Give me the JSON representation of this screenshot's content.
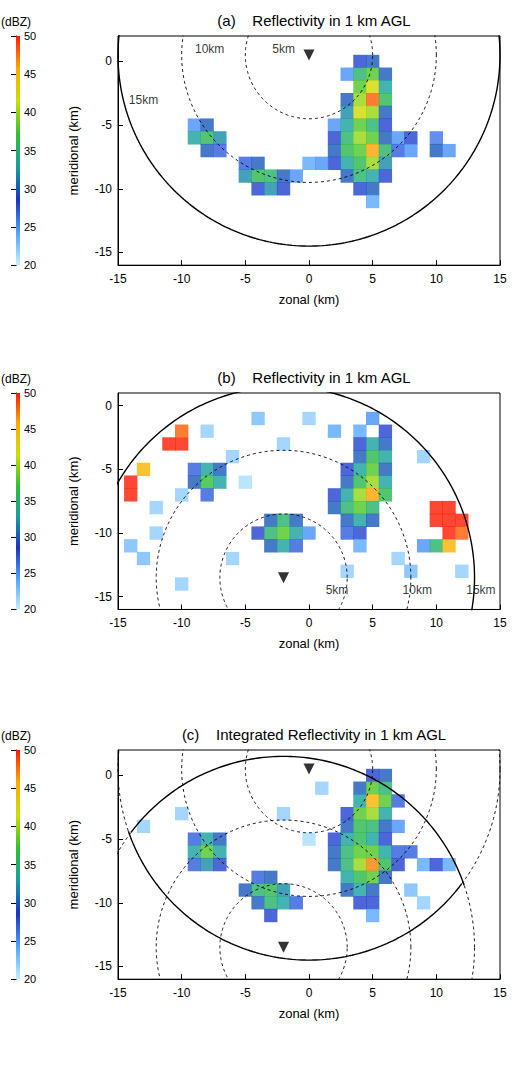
{
  "chart_data": [
    {
      "type": "heatmap",
      "panel": "(a)",
      "title": "Reflectivity in 1 km AGL",
      "x_label": "zonal (km)",
      "y_label": "meridional (km)",
      "xlim": [
        -15,
        15
      ],
      "xticks": [
        -15,
        -10,
        -5,
        0,
        5,
        10,
        15
      ],
      "ylim": [
        -16,
        2
      ],
      "yticks": [
        -15,
        -10,
        -5,
        0
      ],
      "colorbar": {
        "label": "(dBZ)",
        "range": [
          20,
          50
        ],
        "ticks": [
          20,
          25,
          30,
          35,
          40,
          45,
          50
        ]
      },
      "cell_size": 1,
      "cells": [
        [
          4,
          0,
          28
        ],
        [
          5,
          0,
          30
        ],
        [
          3,
          -1,
          25
        ],
        [
          4,
          -1,
          35
        ],
        [
          5,
          -1,
          38
        ],
        [
          6,
          -1,
          30
        ],
        [
          4,
          -2,
          38
        ],
        [
          5,
          -2,
          42
        ],
        [
          6,
          -2,
          33
        ],
        [
          3,
          -3,
          30
        ],
        [
          4,
          -3,
          40
        ],
        [
          5,
          -3,
          48
        ],
        [
          6,
          -3,
          36
        ],
        [
          3,
          -4,
          32
        ],
        [
          4,
          -4,
          42
        ],
        [
          5,
          -4,
          40
        ],
        [
          6,
          -4,
          30
        ],
        [
          2,
          -5,
          25
        ],
        [
          3,
          -5,
          33
        ],
        [
          4,
          -5,
          38
        ],
        [
          5,
          -5,
          35
        ],
        [
          6,
          -5,
          28
        ],
        [
          2,
          -6,
          28
        ],
        [
          3,
          -6,
          35
        ],
        [
          4,
          -6,
          40
        ],
        [
          5,
          -6,
          38
        ],
        [
          6,
          -6,
          30
        ],
        [
          7,
          -6,
          25
        ],
        [
          2,
          -7,
          30
        ],
        [
          3,
          -7,
          36
        ],
        [
          4,
          -7,
          38
        ],
        [
          5,
          -7,
          46
        ],
        [
          6,
          -7,
          35
        ],
        [
          7,
          -7,
          27
        ],
        [
          2,
          -8,
          28
        ],
        [
          3,
          -8,
          33
        ],
        [
          4,
          -8,
          36
        ],
        [
          5,
          -8,
          40
        ],
        [
          6,
          -8,
          32
        ],
        [
          3,
          -9,
          30
        ],
        [
          4,
          -9,
          35
        ],
        [
          5,
          -9,
          33
        ],
        [
          6,
          -9,
          28
        ],
        [
          4,
          -10,
          28
        ],
        [
          5,
          -10,
          30
        ],
        [
          5,
          -11,
          24
        ],
        [
          8,
          -6,
          28
        ],
        [
          8,
          -7,
          25
        ],
        [
          10,
          -6,
          26
        ],
        [
          10,
          -7,
          30
        ],
        [
          11,
          -7,
          25
        ],
        [
          -9,
          -5,
          25
        ],
        [
          -8,
          -5,
          30
        ],
        [
          -9,
          -6,
          33
        ],
        [
          -8,
          -6,
          36
        ],
        [
          -7,
          -6,
          32
        ],
        [
          -8,
          -7,
          30
        ],
        [
          -7,
          -7,
          27
        ],
        [
          -5,
          -8,
          27
        ],
        [
          -4,
          -8,
          30
        ],
        [
          -5,
          -9,
          32
        ],
        [
          -4,
          -9,
          36
        ],
        [
          -3,
          -9,
          35
        ],
        [
          -2,
          -9,
          30
        ],
        [
          -1,
          -9,
          25
        ],
        [
          -4,
          -10,
          28
        ],
        [
          -3,
          -10,
          32
        ],
        [
          -2,
          -10,
          28
        ],
        [
          0,
          -8,
          24
        ],
        [
          1,
          -8,
          25
        ]
      ],
      "radars": [
        {
          "x": 0,
          "y": 0.5
        }
      ],
      "marker": "triangle-down",
      "range_rings": [
        {
          "radius": 5,
          "line_style": "dashed"
        },
        {
          "radius": 10,
          "line_style": "dashed"
        },
        {
          "radius": 15,
          "line_style": "solid"
        }
      ],
      "ring_labels": [
        {
          "text": "10km",
          "x": -7.8,
          "y": 1
        },
        {
          "text": "5km",
          "x": -2,
          "y": 1
        },
        {
          "text": "15km",
          "x": -13,
          "y": -3
        }
      ]
    },
    {
      "type": "heatmap",
      "panel": "(b)",
      "title": "Reflectivity in 1 km AGL",
      "x_label": "zonal (km)",
      "y_label": "meridional (km)",
      "xlim": [
        -15,
        15
      ],
      "xticks": [
        -15,
        -10,
        -5,
        0,
        5,
        10,
        15
      ],
      "ylim": [
        -16,
        1
      ],
      "yticks": [
        -15,
        -10,
        -5,
        0
      ],
      "colorbar": {
        "label": "(dBZ)",
        "range": [
          20,
          50
        ],
        "ticks": [
          20,
          25,
          30,
          35,
          40,
          45,
          50
        ]
      },
      "cell_size": 1,
      "cells": [
        [
          4,
          -2,
          24
        ],
        [
          5,
          -1,
          25
        ],
        [
          6,
          -2,
          28
        ],
        [
          4,
          -3,
          28
        ],
        [
          5,
          -3,
          33
        ],
        [
          6,
          -3,
          30
        ],
        [
          4,
          -4,
          30
        ],
        [
          5,
          -4,
          36
        ],
        [
          6,
          -4,
          33
        ],
        [
          3,
          -5,
          28
        ],
        [
          4,
          -5,
          33
        ],
        [
          5,
          -5,
          38
        ],
        [
          6,
          -5,
          30
        ],
        [
          3,
          -6,
          30
        ],
        [
          4,
          -6,
          36
        ],
        [
          5,
          -6,
          40
        ],
        [
          6,
          -6,
          33
        ],
        [
          2,
          -7,
          28
        ],
        [
          3,
          -7,
          33
        ],
        [
          4,
          -7,
          40
        ],
        [
          5,
          -7,
          46
        ],
        [
          6,
          -7,
          36
        ],
        [
          2,
          -8,
          30
        ],
        [
          3,
          -8,
          35
        ],
        [
          4,
          -8,
          38
        ],
        [
          5,
          -8,
          35
        ],
        [
          3,
          -9,
          30
        ],
        [
          4,
          -9,
          33
        ],
        [
          5,
          -9,
          30
        ],
        [
          3,
          -10,
          27
        ],
        [
          4,
          -10,
          28
        ],
        [
          4,
          -11,
          24
        ],
        [
          -9,
          -5,
          27
        ],
        [
          -8,
          -5,
          33
        ],
        [
          -7,
          -5,
          30
        ],
        [
          -9,
          -6,
          30
        ],
        [
          -8,
          -6,
          37
        ],
        [
          -7,
          -6,
          33
        ],
        [
          -8,
          -7,
          27
        ],
        [
          -3,
          -9,
          30
        ],
        [
          -2,
          -9,
          35
        ],
        [
          -1,
          -9,
          30
        ],
        [
          -4,
          -10,
          28
        ],
        [
          -3,
          -10,
          35
        ],
        [
          -2,
          -10,
          38
        ],
        [
          -1,
          -10,
          33
        ],
        [
          0,
          -10,
          25
        ],
        [
          -3,
          -11,
          30
        ],
        [
          -2,
          -11,
          33
        ],
        [
          -1,
          -11,
          27
        ],
        [
          -14,
          -6,
          50
        ],
        [
          -13,
          -5,
          45
        ],
        [
          -14,
          -7,
          50
        ],
        [
          -11,
          -3,
          50
        ],
        [
          -10,
          -3,
          50
        ],
        [
          -10,
          -2,
          48
        ],
        [
          10,
          -8,
          50
        ],
        [
          11,
          -8,
          50
        ],
        [
          10,
          -9,
          50
        ],
        [
          11,
          -9,
          50
        ],
        [
          12,
          -9,
          50
        ],
        [
          11,
          -10,
          50
        ],
        [
          12,
          -10,
          48
        ],
        [
          9,
          -11,
          25
        ],
        [
          10,
          -11,
          35
        ],
        [
          11,
          -11,
          45
        ],
        [
          -12,
          -10,
          22
        ],
        [
          -13,
          -12,
          23
        ],
        [
          -10,
          -14,
          22
        ],
        [
          -6,
          -12,
          22
        ],
        [
          -8,
          -2,
          22
        ],
        [
          -4,
          -1,
          23
        ],
        [
          0,
          -1,
          22
        ],
        [
          2,
          -2,
          24
        ],
        [
          9,
          -4,
          22
        ],
        [
          -6,
          -4,
          22
        ],
        [
          -12,
          -8,
          22
        ],
        [
          -14,
          -11,
          23
        ],
        [
          7,
          -12,
          22
        ],
        [
          3,
          -13,
          22
        ],
        [
          -2,
          -3,
          22
        ],
        [
          -10,
          -7,
          22
        ],
        [
          -5,
          -6,
          21
        ],
        [
          8,
          -13,
          23
        ],
        [
          12,
          -13,
          22
        ]
      ],
      "radars": [
        {
          "x": -2,
          "y": -13.5
        }
      ],
      "marker": "triangle-down",
      "range_rings": [
        {
          "radius": 5,
          "line_style": "dashed"
        },
        {
          "radius": 10,
          "line_style": "dashed"
        },
        {
          "radius": 15,
          "line_style": "solid"
        }
      ],
      "ring_labels": [
        {
          "text": "5km",
          "x": 2.2,
          "y": -14.5
        },
        {
          "text": "10km",
          "x": 8.5,
          "y": -14.5
        },
        {
          "text": "15km",
          "x": 13.5,
          "y": -14.5
        }
      ]
    },
    {
      "type": "heatmap",
      "panel": "(c)",
      "title": "Integrated Reflectivity in 1 km AGL",
      "x_label": "zonal (km)",
      "y_label": "meridional (km)",
      "xlim": [
        -15,
        15
      ],
      "xticks": [
        -15,
        -10,
        -5,
        0,
        5,
        10,
        15
      ],
      "ylim": [
        -16,
        2
      ],
      "yticks": [
        -15,
        -10,
        -5,
        0
      ],
      "colorbar": {
        "label": "(dBZ)",
        "range": [
          20,
          50
        ],
        "ticks": [
          20,
          25,
          30,
          35,
          40,
          45,
          50
        ]
      },
      "cell_size": 1,
      "cells": [
        [
          5,
          0,
          28
        ],
        [
          6,
          0,
          30
        ],
        [
          4,
          -1,
          30
        ],
        [
          5,
          -1,
          38
        ],
        [
          6,
          -1,
          35
        ],
        [
          4,
          -2,
          33
        ],
        [
          5,
          -2,
          45
        ],
        [
          6,
          -2,
          38
        ],
        [
          7,
          -2,
          27
        ],
        [
          3,
          -3,
          28
        ],
        [
          4,
          -3,
          38
        ],
        [
          5,
          -3,
          40
        ],
        [
          6,
          -3,
          33
        ],
        [
          3,
          -4,
          30
        ],
        [
          4,
          -4,
          36
        ],
        [
          5,
          -4,
          35
        ],
        [
          6,
          -4,
          30
        ],
        [
          7,
          -4,
          25
        ],
        [
          2,
          -5,
          28
        ],
        [
          3,
          -5,
          33
        ],
        [
          4,
          -5,
          36
        ],
        [
          5,
          -5,
          33
        ],
        [
          6,
          -5,
          28
        ],
        [
          2,
          -6,
          30
        ],
        [
          3,
          -6,
          35
        ],
        [
          4,
          -6,
          38
        ],
        [
          5,
          -6,
          38
        ],
        [
          6,
          -6,
          33
        ],
        [
          7,
          -6,
          27
        ],
        [
          2,
          -7,
          30
        ],
        [
          3,
          -7,
          35
        ],
        [
          4,
          -7,
          40
        ],
        [
          5,
          -7,
          47
        ],
        [
          6,
          -7,
          36
        ],
        [
          7,
          -7,
          28
        ],
        [
          3,
          -8,
          33
        ],
        [
          4,
          -8,
          36
        ],
        [
          5,
          -8,
          38
        ],
        [
          6,
          -8,
          30
        ],
        [
          3,
          -9,
          30
        ],
        [
          4,
          -9,
          33
        ],
        [
          5,
          -9,
          30
        ],
        [
          4,
          -10,
          28
        ],
        [
          5,
          -10,
          28
        ],
        [
          5,
          -11,
          24
        ],
        [
          8,
          -6,
          27
        ],
        [
          9,
          -7,
          24
        ],
        [
          10,
          -7,
          28
        ],
        [
          11,
          -7,
          24
        ],
        [
          -9,
          -5,
          27
        ],
        [
          -8,
          -5,
          33
        ],
        [
          -7,
          -5,
          30
        ],
        [
          -9,
          -6,
          33
        ],
        [
          -8,
          -6,
          38
        ],
        [
          -7,
          -6,
          33
        ],
        [
          -9,
          -7,
          27
        ],
        [
          -8,
          -7,
          32
        ],
        [
          -7,
          -7,
          28
        ],
        [
          -4,
          -8,
          27
        ],
        [
          -3,
          -8,
          30
        ],
        [
          -5,
          -9,
          30
        ],
        [
          -4,
          -9,
          35
        ],
        [
          -3,
          -9,
          36
        ],
        [
          -2,
          -9,
          32
        ],
        [
          -4,
          -10,
          30
        ],
        [
          -3,
          -10,
          35
        ],
        [
          -2,
          -10,
          33
        ],
        [
          -1,
          -10,
          27
        ],
        [
          -3,
          -11,
          28
        ],
        [
          -13,
          -4,
          22
        ],
        [
          -10,
          -3,
          22
        ],
        [
          -2,
          -3,
          22
        ],
        [
          1,
          -1,
          22
        ],
        [
          8,
          -9,
          23
        ],
        [
          9,
          -10,
          22
        ],
        [
          0,
          -5,
          21
        ]
      ],
      "radars": [
        {
          "x": 0,
          "y": 0.5
        },
        {
          "x": -2,
          "y": -13.5
        }
      ],
      "marker": "triangle-down",
      "range_rings": [
        {
          "radius": 5,
          "line_style": "dashed"
        },
        {
          "radius": 10,
          "line_style": "dashed"
        },
        {
          "radius": 15,
          "line_style": "solid"
        }
      ],
      "ring_labels": []
    }
  ]
}
